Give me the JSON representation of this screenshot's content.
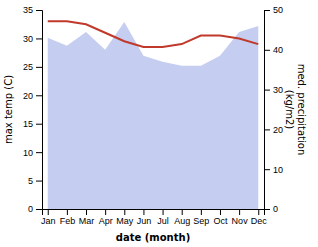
{
  "chart_data": {
    "type": "line",
    "categories": [
      "Jan",
      "Feb",
      "Mar",
      "Apr",
      "May",
      "Jun",
      "Jul",
      "Aug",
      "Sep",
      "Oct",
      "Nov",
      "Dec"
    ],
    "x_label": "date (month)",
    "y_label": "max temp (C)",
    "y2_label": "med. precipitation\n(kg/m2)",
    "series": [
      {
        "type": "area",
        "axis": "y2",
        "color": "#c5cdf0",
        "values": [
          43.0,
          41.0,
          44.5,
          40.0,
          47.0,
          38.5,
          37.0,
          36.0,
          36.0,
          38.5,
          44.5,
          46.0
        ]
      },
      {
        "type": "line",
        "color": "#c0392b",
        "values": [
          33.0,
          33.0,
          32.5,
          31.0,
          29.5,
          28.5,
          28.5,
          29.0,
          30.5,
          30.5,
          30.0,
          29.0
        ]
      }
    ],
    "ylim": [
      0,
      35
    ],
    "yticks": [
      0,
      5,
      10,
      15,
      20,
      25,
      30,
      35
    ],
    "y2lim": [
      0,
      50
    ],
    "y2ticks": [
      0,
      10,
      20,
      30,
      40,
      50
    ],
    "grid": false
  }
}
